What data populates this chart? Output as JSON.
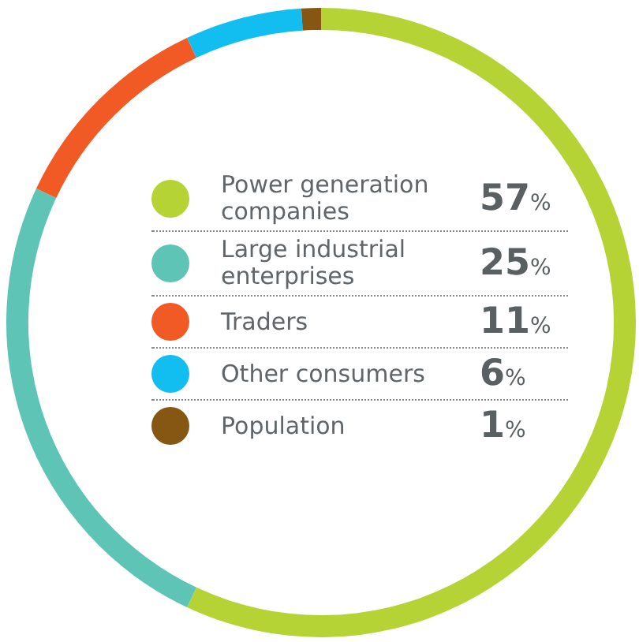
{
  "chart_data": {
    "type": "donut",
    "categories": [
      "Power generation companies",
      "Large industrial enterprises",
      "Traders",
      "Other consumers",
      "Population"
    ],
    "values": [
      57,
      25,
      11,
      6,
      1
    ],
    "value_labels": [
      "57%",
      "25%",
      "11%",
      "6%",
      "1%"
    ],
    "colors": [
      "#b5d334",
      "#5ec4b6",
      "#f15a24",
      "#12bdf0",
      "#855713"
    ],
    "legend": "center"
  }
}
